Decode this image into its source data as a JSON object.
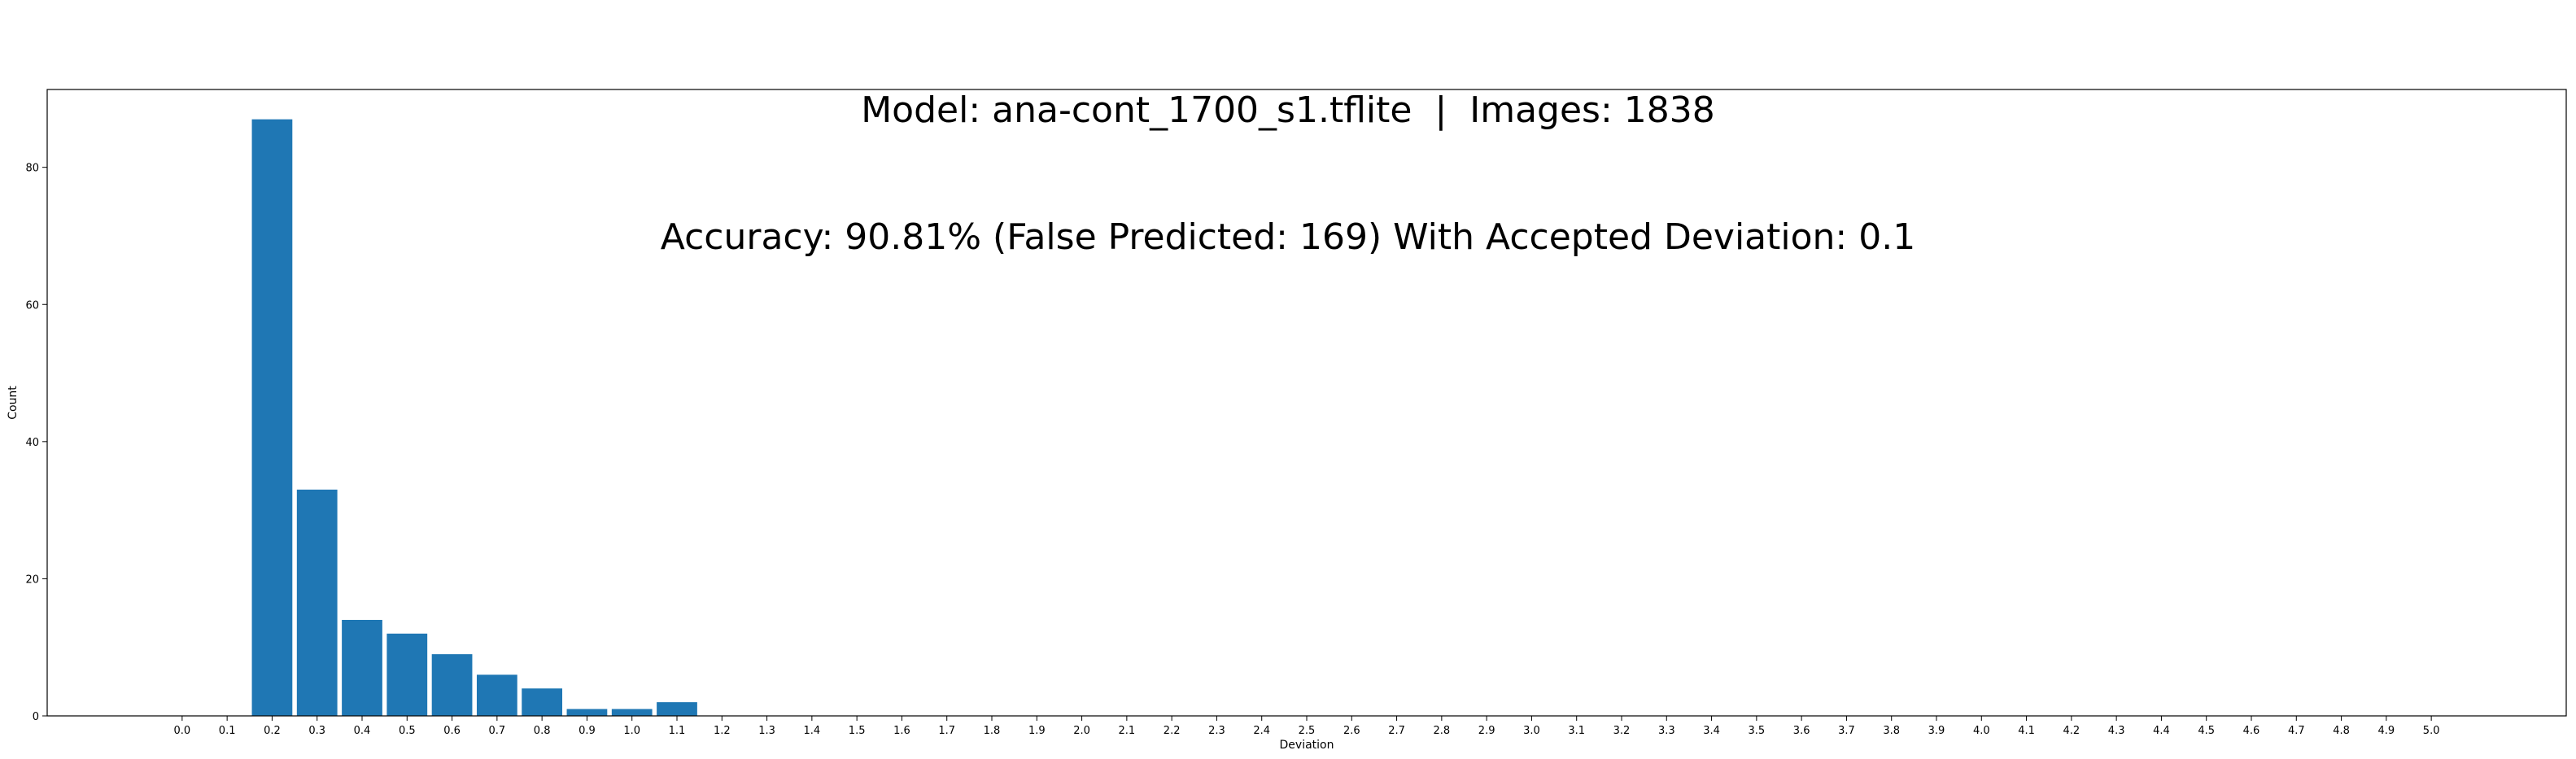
{
  "chart_data": {
    "type": "bar",
    "title_line1": "Model: ana-cont_1700_s1.tflite  |  Images: 1838",
    "title_line2": "Accuracy: 90.81% (False Predicted: 169) With Accepted Deviation: 0.1",
    "xlabel": "Deviation",
    "ylabel": "Count",
    "ylim": [
      0,
      91.35
    ],
    "yticks": [
      0,
      20,
      40,
      60,
      80
    ],
    "xticks": [
      "0.0",
      "0.1",
      "0.2",
      "0.3",
      "0.4",
      "0.5",
      "0.6",
      "0.7",
      "0.8",
      "0.9",
      "1.0",
      "1.1",
      "1.2",
      "1.3",
      "1.4",
      "1.5",
      "1.6",
      "1.7",
      "1.8",
      "1.9",
      "2.0",
      "2.1",
      "2.2",
      "2.3",
      "2.4",
      "2.5",
      "2.6",
      "2.7",
      "2.8",
      "2.9",
      "3.0",
      "3.1",
      "3.2",
      "3.3",
      "3.4",
      "3.5",
      "3.6",
      "3.7",
      "3.8",
      "3.9",
      "4.0",
      "4.1",
      "4.2",
      "4.3",
      "4.4",
      "4.5",
      "4.6",
      "4.7",
      "4.8",
      "4.9",
      "5.0"
    ],
    "categories": [
      "0.2",
      "0.3",
      "0.4",
      "0.5",
      "0.6",
      "0.7",
      "0.8",
      "0.9",
      "1.0",
      "1.1"
    ],
    "values": [
      87,
      33,
      14,
      12,
      9,
      6,
      4,
      1,
      1,
      2
    ],
    "bar_color": "#1f77b4",
    "grid": false,
    "legend": "none"
  }
}
